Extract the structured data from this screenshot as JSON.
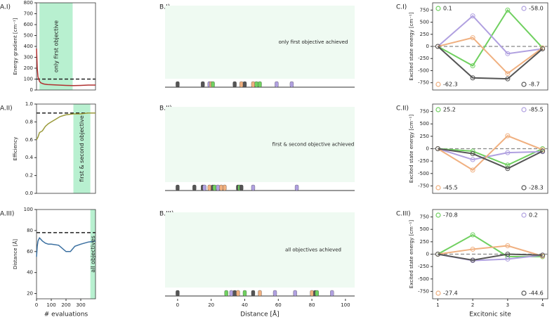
{
  "chart_data": [
    {
      "type": "line",
      "label": "A.I)",
      "ylabel": "Energy gradient [cm⁻¹]",
      "annotation": "only first objective",
      "span": [
        20,
        245
      ],
      "threshold": 100,
      "color": "#b03030",
      "x": [
        0,
        5,
        10,
        20,
        30,
        50,
        75,
        100,
        150,
        200,
        250,
        300,
        350,
        400
      ],
      "values": [
        380,
        200,
        120,
        80,
        65,
        55,
        50,
        48,
        45,
        42,
        40,
        42,
        45,
        45
      ],
      "xlim": [
        0,
        400
      ],
      "ylim": [
        0,
        800
      ],
      "yticks": [
        0,
        100,
        200,
        300,
        400,
        500,
        600,
        700,
        800
      ]
    },
    {
      "type": "line",
      "label": "A.II)",
      "ylabel": "Efficiency",
      "annotation": "first & second objective",
      "span": [
        250,
        365
      ],
      "threshold": 0.9,
      "color": "#9a9a3a",
      "x": [
        0,
        10,
        20,
        40,
        60,
        80,
        100,
        130,
        160,
        200,
        250,
        300,
        350,
        400
      ],
      "values": [
        0.6,
        0.63,
        0.68,
        0.7,
        0.75,
        0.78,
        0.8,
        0.83,
        0.86,
        0.88,
        0.89,
        0.89,
        0.9,
        0.9
      ],
      "xlim": [
        0,
        400
      ],
      "ylim": [
        0,
        1
      ],
      "yticks": [
        {
          "value": 0,
          "label": "0.0"
        },
        0.2,
        0.4,
        0.6,
        0.8,
        {
          "value": 1,
          "label": "1.0"
        }
      ]
    },
    {
      "type": "line",
      "label": "A.III)",
      "ylabel": "Distance [Å]",
      "xlabel": "# evaluations",
      "annotation": "all objectives",
      "span": [
        365,
        400
      ],
      "threshold": 78,
      "color": "#3a6fa0",
      "x": [
        0,
        5,
        10,
        20,
        40,
        60,
        80,
        100,
        150,
        200,
        230,
        260,
        300,
        350,
        400
      ],
      "values": [
        55,
        65,
        70,
        73,
        70,
        68,
        67,
        67,
        66,
        60,
        60,
        65,
        67,
        69,
        70
      ],
      "xlim": [
        0,
        400
      ],
      "ylim": [
        15,
        100
      ],
      "yticks": [
        20,
        40,
        60,
        80,
        100
      ],
      "xticks": [
        0,
        100,
        200,
        300
      ]
    },
    {
      "type": "strip",
      "label": "B.I)",
      "annotation": "only first objective achieved",
      "xlim": [
        -10,
        108
      ],
      "markers": [
        {
          "x": 0,
          "color": "#555555"
        },
        {
          "x": 15,
          "color": "#555555"
        },
        {
          "x": 19,
          "color": "#b0a0e0"
        },
        {
          "x": 20,
          "color": "#f0b080"
        },
        {
          "x": 21,
          "color": "#70d060"
        },
        {
          "x": 34,
          "color": "#555555"
        },
        {
          "x": 38,
          "color": "#f0b080"
        },
        {
          "x": 40,
          "color": "#555555"
        },
        {
          "x": 45,
          "color": "#f0b080"
        },
        {
          "x": 47,
          "color": "#70d060"
        },
        {
          "x": 49,
          "color": "#70d060"
        },
        {
          "x": 59,
          "color": "#b0a0e0"
        },
        {
          "x": 68,
          "color": "#b0a0e0"
        }
      ]
    },
    {
      "type": "strip",
      "label": "B.II)",
      "annotation": "first & second objective achieved",
      "xlim": [
        -10,
        108
      ],
      "markers": [
        {
          "x": 0,
          "color": "#555555"
        },
        {
          "x": 10,
          "color": "#555555"
        },
        {
          "x": 15,
          "color": "#555555"
        },
        {
          "x": 16,
          "color": "#b0a0e0"
        },
        {
          "x": 19,
          "color": "#f0b080"
        },
        {
          "x": 21,
          "color": "#555555"
        },
        {
          "x": 22,
          "color": "#70d060"
        },
        {
          "x": 24,
          "color": "#b0a0e0"
        },
        {
          "x": 26,
          "color": "#f0b080"
        },
        {
          "x": 28,
          "color": "#f0b080"
        },
        {
          "x": 36,
          "color": "#555555"
        },
        {
          "x": 37,
          "color": "#70d060"
        },
        {
          "x": 38,
          "color": "#555555"
        },
        {
          "x": 45,
          "color": "#b0a0e0"
        },
        {
          "x": 71,
          "color": "#b0a0e0"
        }
      ]
    },
    {
      "type": "strip",
      "label": "B.III)",
      "annotation": "all objectives achieved",
      "xlabel": "Distance [Å]",
      "xlim": [
        -10,
        108
      ],
      "xticks": [
        0,
        20,
        40,
        60,
        80,
        100
      ],
      "markers": [
        {
          "x": 0,
          "color": "#555555"
        },
        {
          "x": 29,
          "color": "#70d060"
        },
        {
          "x": 32,
          "color": "#b0a0e0"
        },
        {
          "x": 34,
          "color": "#555555"
        },
        {
          "x": 36,
          "color": "#f0b080"
        },
        {
          "x": 40,
          "color": "#70d060"
        },
        {
          "x": 45,
          "color": "#555555"
        },
        {
          "x": 49,
          "color": "#f0b080"
        },
        {
          "x": 58,
          "color": "#b0a0e0"
        },
        {
          "x": 70,
          "color": "#b0a0e0"
        },
        {
          "x": 80,
          "color": "#f0b080"
        },
        {
          "x": 82,
          "color": "#555555"
        },
        {
          "x": 83,
          "color": "#70d060"
        },
        {
          "x": 92,
          "color": "#b0a0e0"
        }
      ]
    },
    {
      "type": "sites",
      "label": "C.I)",
      "ylabel": "Excited state energy [cm⁻¹]",
      "x": [
        1,
        2,
        3,
        4
      ],
      "xlim": [
        0.85,
        4.15
      ],
      "ylim": [
        -900,
        900
      ],
      "yticks": [
        -750,
        -500,
        -250,
        0,
        250,
        500,
        750
      ],
      "baseline": 0,
      "series": [
        {
          "name": "0.1",
          "color": "#70d060",
          "corner": "upper left",
          "values": [
            0,
            -400,
            750,
            -30
          ]
        },
        {
          "name": "-58.0",
          "color": "#b0a0e0",
          "corner": "upper right",
          "values": [
            0,
            630,
            -150,
            -50
          ]
        },
        {
          "name": "-62.3",
          "color": "#f0b080",
          "corner": "lower left",
          "values": [
            0,
            180,
            -560,
            -30
          ]
        },
        {
          "name": "-8.7",
          "color": "#555555",
          "corner": "lower right",
          "values": [
            0,
            -650,
            -670,
            -50
          ]
        }
      ]
    },
    {
      "type": "sites",
      "label": "C.II)",
      "ylabel": "Excited state energy [cm⁻¹]",
      "x": [
        1,
        2,
        3,
        4
      ],
      "xlim": [
        0.85,
        4.15
      ],
      "ylim": [
        -900,
        900
      ],
      "yticks": [
        -750,
        -500,
        -250,
        0,
        250,
        500,
        750
      ],
      "baseline": 0,
      "series": [
        {
          "name": "25.2",
          "color": "#70d060",
          "corner": "upper left",
          "values": [
            0,
            -50,
            -330,
            0
          ]
        },
        {
          "name": "-85.5",
          "color": "#b0a0e0",
          "corner": "upper right",
          "values": [
            0,
            -220,
            -80,
            -60
          ]
        },
        {
          "name": "-45.5",
          "color": "#f0b080",
          "corner": "lower left",
          "values": [
            0,
            -430,
            260,
            -20
          ]
        },
        {
          "name": "-28.3",
          "color": "#555555",
          "corner": "lower right",
          "values": [
            0,
            -100,
            -400,
            -50
          ]
        }
      ]
    },
    {
      "type": "sites",
      "label": "C.III)",
      "ylabel": "Excited state energy [cm⁻¹]",
      "xlabel": "Excitonic site",
      "x": [
        1,
        2,
        3,
        4
      ],
      "xlim": [
        0.85,
        4.15
      ],
      "ylim": [
        -900,
        900
      ],
      "yticks": [
        -750,
        -500,
        -250,
        0,
        250,
        500,
        750
      ],
      "xticks": [
        1,
        2,
        3,
        4
      ],
      "baseline": 0,
      "series": [
        {
          "name": "-70.8",
          "color": "#70d060",
          "corner": "upper left",
          "values": [
            0,
            390,
            -50,
            -50
          ]
        },
        {
          "name": "0.2",
          "color": "#b0a0e0",
          "corner": "upper right",
          "values": [
            0,
            -130,
            -100,
            -20
          ]
        },
        {
          "name": "-27.4",
          "color": "#f0b080",
          "corner": "lower left",
          "values": [
            0,
            100,
            170,
            -40
          ]
        },
        {
          "name": "-44.6",
          "color": "#555555",
          "corner": "lower right",
          "values": [
            0,
            -120,
            0,
            -20
          ]
        }
      ]
    }
  ]
}
